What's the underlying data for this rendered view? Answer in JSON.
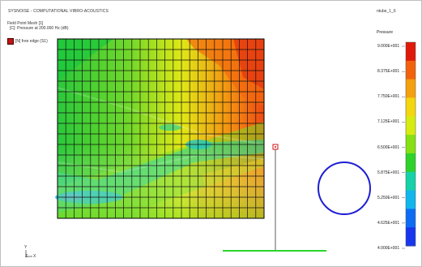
{
  "header": {
    "app_title": "SYSNOISE - COMPUTATIONAL VIBRO-ACOUSTICS",
    "file_name": "ntube_1_6"
  },
  "plot": {
    "mesh_title": "Field Point Mesh [1]",
    "mesh_subtitle": "[C]: Pressure at 200.000 Hz (dB)",
    "legend_label": "[N] free edge (S1)",
    "legend_color": "#c41414"
  },
  "colorbar": {
    "title": "Pressure",
    "labels": [
      "9.000E+001",
      "8.375E+001",
      "7.750E+001",
      "7.125E+001",
      "6.500E+001",
      "5.875E+001",
      "5.250E+001",
      "4.625E+001",
      "4.000E+001"
    ],
    "colors": [
      "#e01a0a",
      "#f2620c",
      "#f5a00e",
      "#f3d60e",
      "#d6ec10",
      "#86e014",
      "#2ed22a",
      "#16d2a8",
      "#12b6ee",
      "#0e6cf4",
      "#1836ee"
    ]
  },
  "axes": {
    "y": "Y",
    "x": "X",
    "z": "Z"
  },
  "colors": {
    "circle": "#1e1ed2",
    "baseline": "#2ad62a",
    "marker": "#d01414"
  }
}
